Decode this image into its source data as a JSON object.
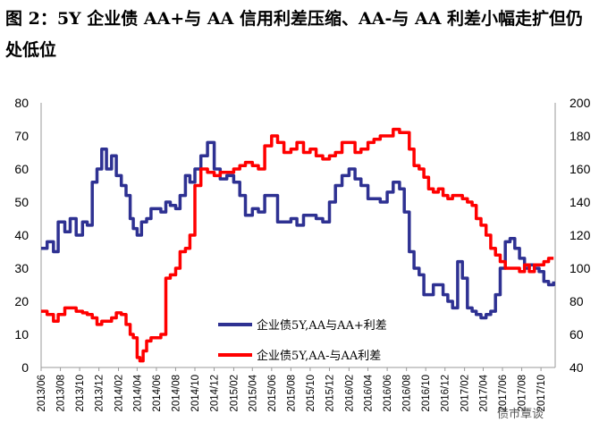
{
  "title": "图 2：5Y 企业债 AA+与 AA 信用利差压缩、AA-与 AA 利差小幅走扩但仍处低位",
  "watermark": "债市覃谈",
  "chart_data": {
    "type": "line",
    "title": "图 2：5Y 企业债 AA+与 AA 信用利差压缩、AA-与 AA 利差小幅走扩但仍处低位",
    "xlabel": "",
    "ylabel_left": "",
    "ylabel_right": "",
    "x_ticks": [
      "2013/06",
      "2013/08",
      "2013/10",
      "2013/12",
      "2014/02",
      "2014/04",
      "2014/06",
      "2014/08",
      "2014/10",
      "2014/12",
      "2015/02",
      "2015/04",
      "2015/06",
      "2015/08",
      "2015/10",
      "2015/12",
      "2016/02",
      "2016/04",
      "2016/06",
      "2016/08",
      "2016/10",
      "2016/12",
      "2017/02",
      "2017/04",
      "2017/06",
      "2017/08",
      "2017/10"
    ],
    "y_left": {
      "min": 0,
      "max": 80,
      "ticks": [
        0,
        10,
        20,
        30,
        40,
        50,
        60,
        70,
        80
      ]
    },
    "y_right": {
      "min": 40,
      "max": 200,
      "ticks": [
        40,
        60,
        80,
        100,
        120,
        140,
        160,
        180,
        200
      ]
    },
    "grid": false,
    "legend_position": "center-bottom",
    "series": [
      {
        "name": "企业债5Y,AA与AA+利差",
        "axis": "left",
        "color": "#2e3192",
        "x": [
          "2013-06-01",
          "2013-06-20",
          "2013-07-10",
          "2013-07-25",
          "2013-08-15",
          "2013-09-01",
          "2013-09-20",
          "2013-10-10",
          "2013-10-25",
          "2013-11-10",
          "2013-11-25",
          "2013-12-10",
          "2013-12-25",
          "2014-01-10",
          "2014-01-25",
          "2014-02-10",
          "2014-02-25",
          "2014-03-10",
          "2014-03-20",
          "2014-04-01",
          "2014-04-15",
          "2014-05-01",
          "2014-05-15",
          "2014-06-01",
          "2014-06-15",
          "2014-07-01",
          "2014-07-15",
          "2014-08-01",
          "2014-08-15",
          "2014-09-01",
          "2014-09-15",
          "2014-10-01",
          "2014-10-20",
          "2014-11-10",
          "2014-12-01",
          "2014-12-20",
          "2015-01-10",
          "2015-02-01",
          "2015-02-20",
          "2015-03-10",
          "2015-04-01",
          "2015-04-20",
          "2015-05-10",
          "2015-06-01",
          "2015-06-20",
          "2015-07-10",
          "2015-08-01",
          "2015-08-20",
          "2015-09-10",
          "2015-10-01",
          "2015-10-20",
          "2015-11-10",
          "2015-12-01",
          "2015-12-20",
          "2016-01-10",
          "2016-02-01",
          "2016-02-20",
          "2016-03-10",
          "2016-04-01",
          "2016-04-20",
          "2016-05-10",
          "2016-06-01",
          "2016-06-20",
          "2016-07-10",
          "2016-07-25",
          "2016-08-10",
          "2016-08-25",
          "2016-09-10",
          "2016-09-25",
          "2016-10-10",
          "2016-10-25",
          "2016-11-10",
          "2016-11-25",
          "2016-12-10",
          "2016-12-25",
          "2017-01-10",
          "2017-01-25",
          "2017-02-10",
          "2017-02-25",
          "2017-03-10",
          "2017-03-25",
          "2017-04-10",
          "2017-04-25",
          "2017-05-10",
          "2017-05-25",
          "2017-06-10",
          "2017-06-25",
          "2017-07-10",
          "2017-07-25",
          "2017-08-10",
          "2017-08-25",
          "2017-09-10",
          "2017-09-25",
          "2017-10-10",
          "2017-10-25",
          "2017-11-10"
        ],
        "values": [
          36,
          38,
          35,
          44,
          41,
          45,
          40,
          44,
          43,
          56,
          60,
          66,
          60,
          64,
          58,
          55,
          52,
          45,
          42,
          40,
          44,
          45,
          48,
          48,
          47,
          50,
          49,
          48,
          52,
          58,
          56,
          60,
          64,
          68,
          60,
          57,
          58,
          56,
          52,
          46,
          48,
          47,
          52,
          52,
          44,
          44,
          45,
          43,
          46,
          46,
          45,
          44,
          50,
          55,
          58,
          60,
          57,
          55,
          51,
          51,
          50,
          53,
          56,
          54,
          47,
          35,
          30,
          28,
          22,
          22,
          25,
          25,
          22,
          20,
          18,
          32,
          27,
          18,
          17,
          16,
          15,
          16,
          17,
          22,
          30,
          38,
          39,
          36,
          33,
          30,
          31,
          30,
          29,
          26,
          25,
          26
        ]
      },
      {
        "name": "企业债5Y,AA-与AA利差",
        "axis": "right",
        "color": "#ff0000",
        "x": [
          "2013-06-01",
          "2013-06-20",
          "2013-07-10",
          "2013-07-25",
          "2013-08-15",
          "2013-09-01",
          "2013-09-20",
          "2013-10-10",
          "2013-10-25",
          "2013-11-10",
          "2013-11-25",
          "2013-12-10",
          "2013-12-25",
          "2014-01-10",
          "2014-01-25",
          "2014-02-10",
          "2014-02-25",
          "2014-03-10",
          "2014-03-20",
          "2014-04-01",
          "2014-04-10",
          "2014-04-20",
          "2014-05-01",
          "2014-05-15",
          "2014-06-01",
          "2014-06-15",
          "2014-07-01",
          "2014-07-15",
          "2014-08-01",
          "2014-08-15",
          "2014-09-01",
          "2014-09-15",
          "2014-10-01",
          "2014-10-20",
          "2014-11-10",
          "2014-12-01",
          "2014-12-20",
          "2015-01-10",
          "2015-02-01",
          "2015-02-20",
          "2015-03-10",
          "2015-04-01",
          "2015-04-20",
          "2015-05-10",
          "2015-06-01",
          "2015-06-20",
          "2015-07-10",
          "2015-08-01",
          "2015-08-20",
          "2015-09-10",
          "2015-10-01",
          "2015-10-20",
          "2015-11-10",
          "2015-12-01",
          "2015-12-20",
          "2016-01-10",
          "2016-02-01",
          "2016-02-20",
          "2016-03-10",
          "2016-04-01",
          "2016-04-20",
          "2016-05-10",
          "2016-06-01",
          "2016-06-20",
          "2016-07-10",
          "2016-07-25",
          "2016-08-10",
          "2016-08-25",
          "2016-09-10",
          "2016-09-25",
          "2016-10-10",
          "2016-10-25",
          "2016-11-10",
          "2016-11-25",
          "2016-12-10",
          "2016-12-25",
          "2017-01-10",
          "2017-01-25",
          "2017-02-10",
          "2017-02-25",
          "2017-03-10",
          "2017-03-25",
          "2017-04-10",
          "2017-04-25",
          "2017-05-10",
          "2017-05-25",
          "2017-06-10",
          "2017-06-25",
          "2017-07-10",
          "2017-07-25",
          "2017-08-10",
          "2017-08-25",
          "2017-09-10",
          "2017-09-25",
          "2017-10-10",
          "2017-10-25",
          "2017-11-10"
        ],
        "values": [
          74,
          72,
          68,
          72,
          76,
          76,
          74,
          73,
          72,
          70,
          66,
          68,
          68,
          70,
          73,
          72,
          66,
          60,
          58,
          46,
          44,
          50,
          56,
          58,
          58,
          60,
          94,
          96,
          100,
          110,
          112,
          120,
          150,
          160,
          158,
          156,
          158,
          158,
          160,
          162,
          164,
          162,
          160,
          174,
          180,
          176,
          170,
          172,
          176,
          170,
          172,
          168,
          166,
          168,
          170,
          176,
          176,
          170,
          172,
          176,
          178,
          180,
          180,
          184,
          182,
          182,
          172,
          162,
          160,
          155,
          148,
          146,
          148,
          144,
          142,
          144,
          144,
          142,
          140,
          138,
          130,
          126,
          120,
          112,
          108,
          104,
          100,
          100,
          100,
          98,
          102,
          98,
          102,
          102,
          104,
          106,
          106
        ]
      }
    ]
  }
}
